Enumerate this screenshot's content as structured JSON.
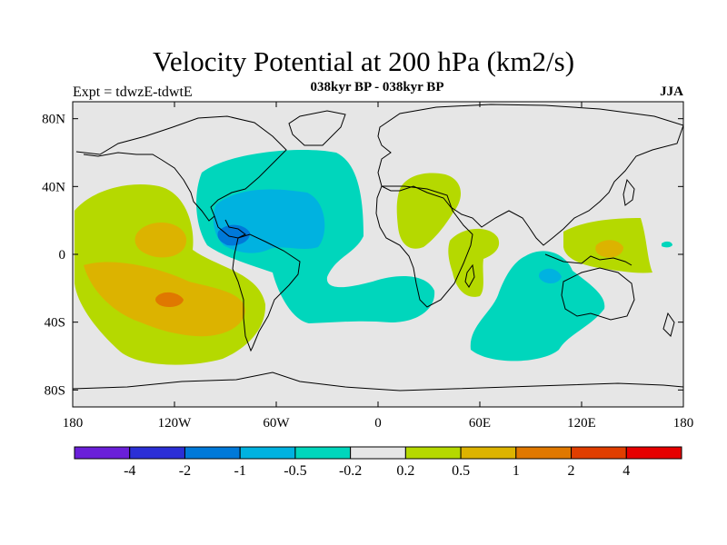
{
  "title": "Velocity Potential at 200 hPa (km2/s)",
  "subtitle": "038kyr BP - 038kyr BP",
  "left_label": "Expt = tdwzE-tdwtE",
  "right_label": "JJA",
  "chart_data": {
    "type": "contour-map",
    "projection": "cylindrical equidistant",
    "lon_range": [
      -180,
      180
    ],
    "lat_range": [
      -90,
      90
    ],
    "lon_ticks": [
      {
        "lon": -180,
        "label": "180"
      },
      {
        "lon": -120,
        "label": "120W"
      },
      {
        "lon": -60,
        "label": "60W"
      },
      {
        "lon": 0,
        "label": "0"
      },
      {
        "lon": 60,
        "label": "60E"
      },
      {
        "lon": 120,
        "label": "120E"
      },
      {
        "lon": 180,
        "label": "180"
      }
    ],
    "lat_ticks": [
      {
        "lat": 80,
        "label": "80N"
      },
      {
        "lat": 40,
        "label": "40N"
      },
      {
        "lat": 0,
        "label": "0"
      },
      {
        "lat": -40,
        "label": "40S"
      },
      {
        "lat": -80,
        "label": "80S"
      }
    ],
    "colorbar": {
      "colors": [
        "#6a1fd9",
        "#2b2fd6",
        "#0079d9",
        "#00b2e0",
        "#00d6bc",
        "#e6e6e6",
        "#b5d900",
        "#dcb300",
        "#e07800",
        "#e03e00",
        "#e60000"
      ],
      "labels": [
        "-4",
        "-2",
        "-1",
        "-0.5",
        "-0.2",
        "0.2",
        "0.5",
        "1",
        "2",
        "4"
      ]
    },
    "background_color": "#e6e6e6"
  }
}
